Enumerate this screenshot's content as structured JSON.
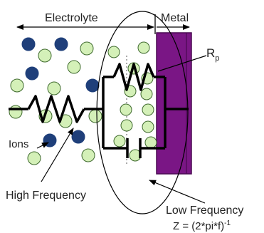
{
  "labels": {
    "electrolyte": "Electrolyte",
    "metal": "Metal",
    "rp_main": "R",
    "rp_sub": "p",
    "ions": "Ions",
    "high_frequency": "High Frequency",
    "low_frequency": "Low Frequency",
    "impedance_main": "Z = (2*pi*f)",
    "impedance_sup": "-1"
  },
  "colors": {
    "dark_ion": "#1f3f7a",
    "light_ion": "#d4f0b8",
    "ion_stroke": "#3f6a2e",
    "metal": "#7a1685",
    "metal_stroke": "#4a0a52",
    "wire": "#000000"
  }
}
